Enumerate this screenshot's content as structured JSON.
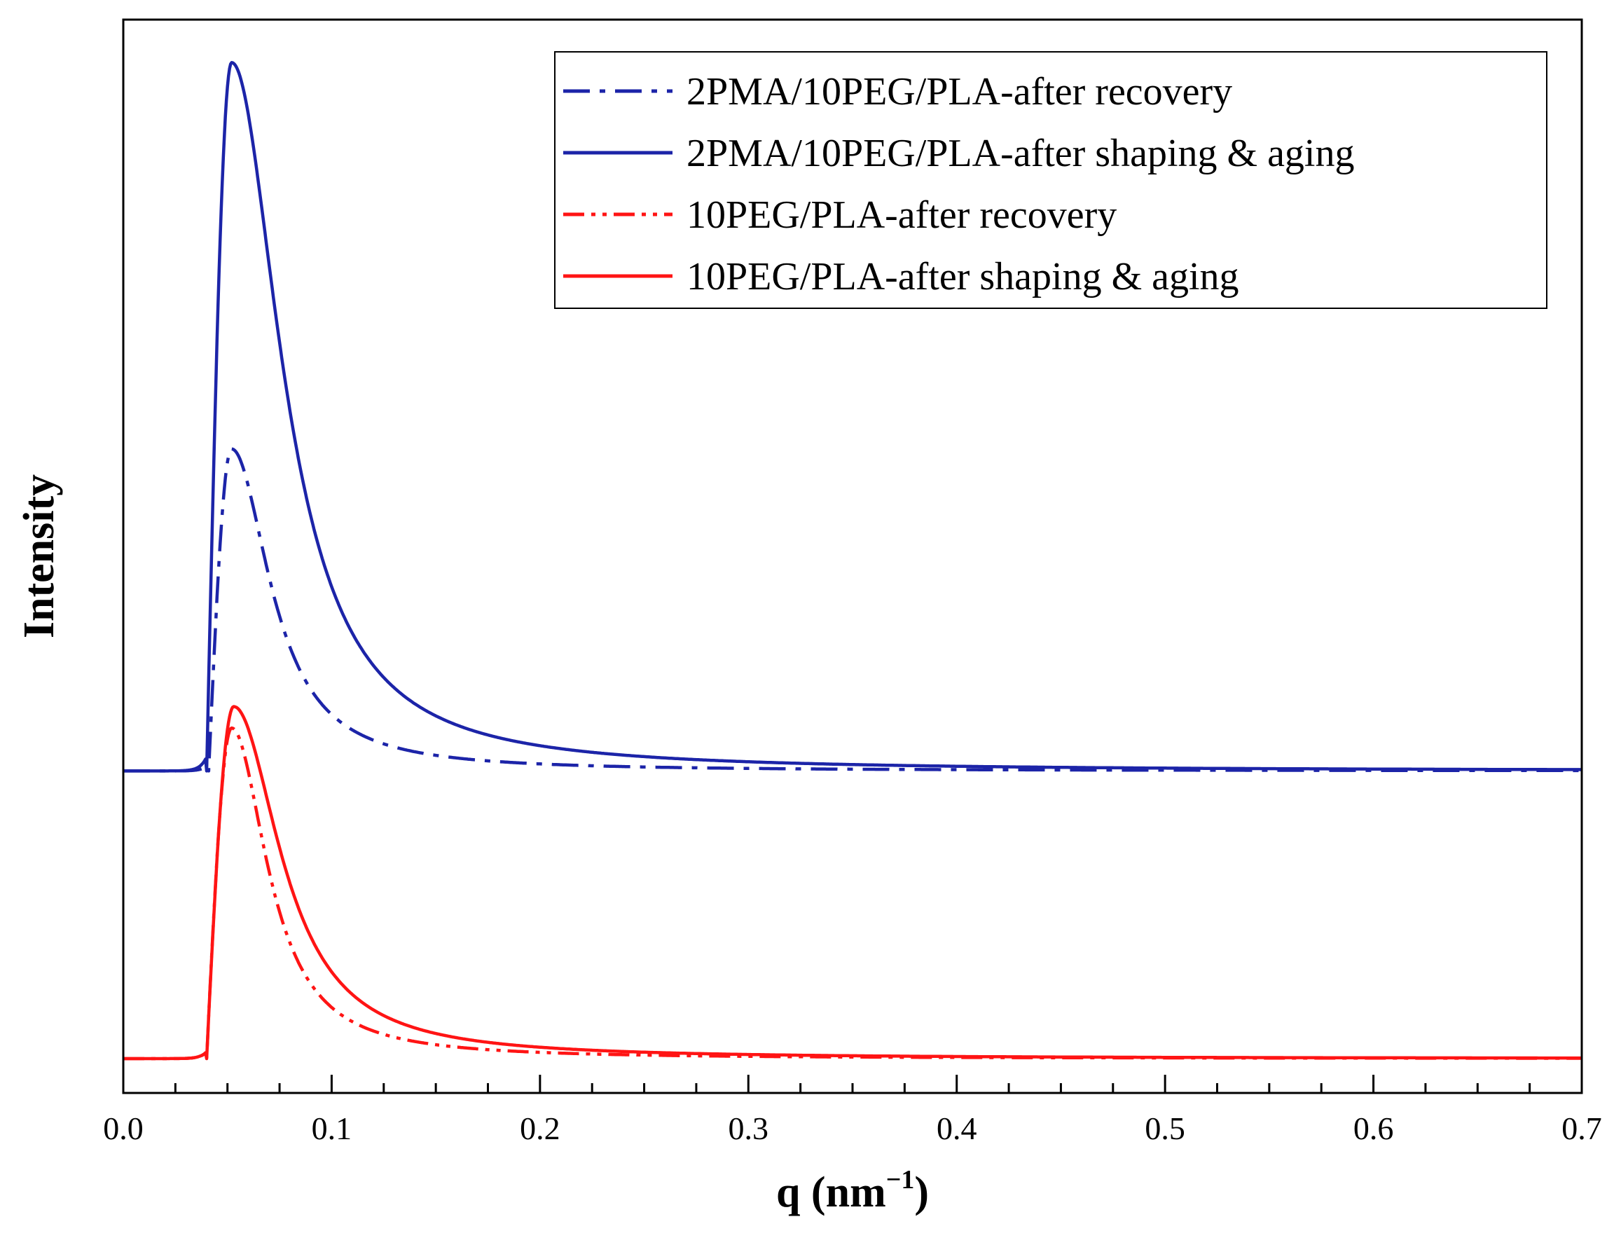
{
  "chart_data": {
    "type": "line",
    "title": "",
    "xlabel_main": "q (nm",
    "xlabel_sup": "−1",
    "xlabel_close": ")",
    "ylabel": "Intensity",
    "xlim": [
      0,
      0.7
    ],
    "ylim": [
      0,
      1
    ],
    "grid": false,
    "legend_position": "top-right",
    "x_ticks": [
      {
        "value": 0.0,
        "label": "0.0"
      },
      {
        "value": 0.1,
        "label": "0.1"
      },
      {
        "value": 0.2,
        "label": "0.2"
      },
      {
        "value": 0.3,
        "label": "0.3"
      },
      {
        "value": 0.4,
        "label": "0.4"
      },
      {
        "value": 0.5,
        "label": "0.5"
      },
      {
        "value": 0.6,
        "label": "0.6"
      },
      {
        "value": 0.7,
        "label": "0.7"
      }
    ],
    "x_minor_step": 0.025,
    "series": [
      {
        "name": "2PMA/10PEG/PLA-after recovery",
        "color": "#1c24a8",
        "dash": "dashdot",
        "baseline": 0.3,
        "peak": 0.6,
        "onset": 0.041,
        "peak_q": 0.052,
        "decay": 0.028,
        "drift": 0.0
      },
      {
        "name": "2PMA/10PEG/PLA-after shaping & aging",
        "color": "#1c24a8",
        "dash": "solid",
        "baseline": 0.3,
        "peak": 0.96,
        "onset": 0.04,
        "peak_q": 0.052,
        "decay": 0.036,
        "drift": 0.0
      },
      {
        "name": "10PEG/PLA-after recovery",
        "color": "#ff1414",
        "dash": "dashdotdot",
        "baseline": 0.032,
        "peak": 0.34,
        "onset": 0.04,
        "peak_q": 0.052,
        "decay": 0.026,
        "drift": 0.0
      },
      {
        "name": "10PEG/PLA-after shaping & aging",
        "color": "#ff1414",
        "dash": "solid",
        "baseline": 0.032,
        "peak": 0.36,
        "onset": 0.04,
        "peak_q": 0.053,
        "decay": 0.034,
        "drift": 0.0
      }
    ]
  }
}
